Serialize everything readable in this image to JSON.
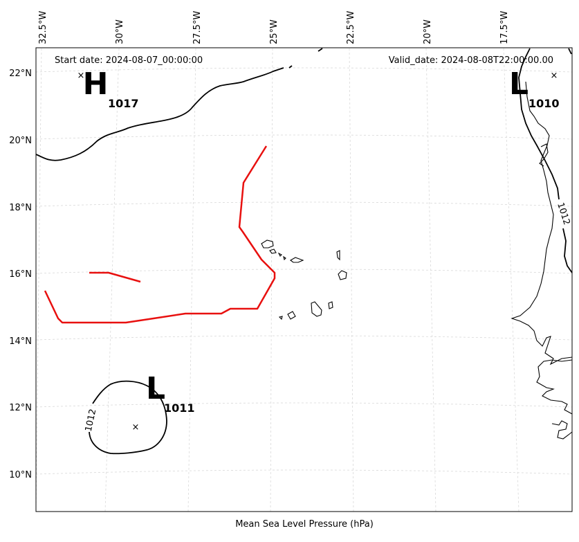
{
  "map": {
    "start_date": "Start date: 2024-08-07_00:00:00",
    "valid_date": "Valid_date: 2024-08-08T22:00:00.00",
    "xlabel": "Mean Sea Level Pressure (hPa)",
    "lon_labels": [
      "32.5°W",
      "30°W",
      "27.5°W",
      "25°W",
      "22.5°W",
      "20°W",
      "17.5°W"
    ],
    "lat_labels": [
      "22°N",
      "20°N",
      "18°N",
      "16°N",
      "14°N",
      "12°N",
      "10°N"
    ],
    "pressure_centers": [
      {
        "type": "H",
        "value": "1017",
        "lon": -30.8,
        "lat": 22.0
      },
      {
        "type": "L",
        "value": "1010",
        "lon": -15.8,
        "lat": 22.0
      },
      {
        "type": "L",
        "value": "1011",
        "lon": -29.1,
        "lat": 11.4
      }
    ],
    "isobar_labels": [
      "1012",
      "1012"
    ],
    "colors": {
      "front": "#e8100f",
      "isobar": "#000000",
      "grid": "#d8d8d8"
    }
  }
}
